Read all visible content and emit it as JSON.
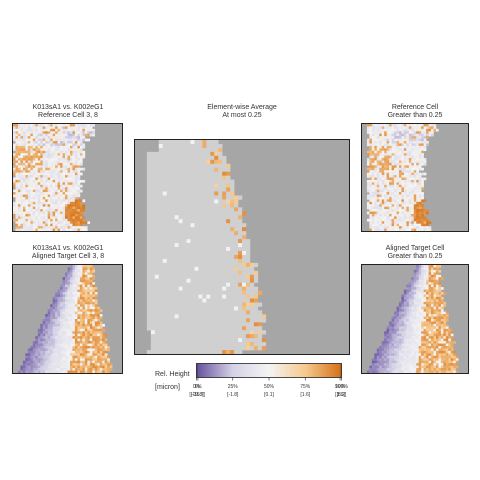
{
  "panels": {
    "ref_corr": {
      "title_line1": "K013sA1 vs. K002eG1",
      "title_line2": "Reference Cell 3, 8"
    },
    "aligned_corr": {
      "title_line1": "K013sA1 vs. K002eG1",
      "title_line2": "Aligned Target Cell 3, 8"
    },
    "average": {
      "title_line1": "Element-wise Average",
      "title_line2": "At most 0.25"
    },
    "ref_threshold": {
      "title_line1": "Reference Cell",
      "title_line2": "Greater than 0.25"
    },
    "aligned_threshold": {
      "title_line1": "Aligned Target Cell",
      "title_line2": "Greater than 0.25"
    }
  },
  "legend": {
    "title_line1": "Rel. Height",
    "title_line2": "[micron]",
    "percent_labels": [
      "0%",
      "1%",
      "25%",
      "50%",
      "75%",
      "99%",
      "100%"
    ],
    "value_labels": [
      "[-19.8]",
      "[-15.7]",
      "[-1.8]",
      "[0.1]",
      "[1.6]",
      "[3.9]",
      "[8.2]"
    ]
  },
  "chart_data": {
    "type": "heatmap",
    "title": "",
    "colorbar": {
      "label": "Rel. Height [micron]",
      "percentiles": [
        0,
        1,
        25,
        50,
        75,
        99,
        100
      ],
      "values_micron": [
        -19.8,
        -15.7,
        -1.8,
        0.1,
        1.6,
        3.9,
        8.2
      ],
      "colors": [
        "#2d0f4e",
        "#6a55a0",
        "#d4d2e6",
        "#f4f4f4",
        "#f6c98f",
        "#d6731a",
        "#7a3a08"
      ]
    },
    "background_color": "#a6a6a6",
    "masked_color": "#d0d0d0",
    "panels": [
      "Reference Cell 3, 8",
      "Aligned Target Cell 3, 8",
      "Element-wise Average at most 0.25",
      "Reference Cell greater than 0.25",
      "Aligned Target Cell greater than 0.25"
    ]
  }
}
